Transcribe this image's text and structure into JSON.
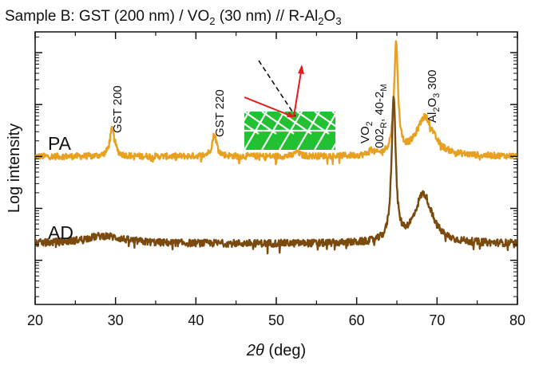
{
  "chart_data": {
    "type": "line",
    "title_parts": {
      "a": "Sample B: GST (200 nm) / VO",
      "a_sub": "2",
      "b": " (30 nm) // R-Al",
      "b_sub": "2",
      "c": "O",
      "c_sub": "3"
    },
    "xlabel_italic": "2θ",
    "xlabel_rest": " (deg)",
    "ylabel": "Log intensity",
    "xlim": [
      20,
      80
    ],
    "y_scale": "log",
    "x_ticks": [
      20,
      30,
      40,
      50,
      60,
      70,
      80
    ],
    "x_tick_labels": [
      "20",
      "30",
      "40",
      "50",
      "60",
      "70",
      "80"
    ],
    "grid": false,
    "legend": "none (inline labels)",
    "series": [
      {
        "name": "PA",
        "color": "#E8A020",
        "baseline": 1.0,
        "noise": 0.06,
        "peaks": [
          {
            "x": 29.6,
            "height": 0.55,
            "width": 0.35
          },
          {
            "x": 42.3,
            "height": 0.42,
            "width": 0.35
          },
          {
            "x": 52.6,
            "height": 0.1,
            "width": 0.3
          },
          {
            "x": 61.8,
            "height": 0.1,
            "width": 0.3
          },
          {
            "x": 64.9,
            "height": 2.1,
            "width": 0.3
          },
          {
            "x": 68.5,
            "height": 0.75,
            "width": 1.3
          }
        ]
      },
      {
        "name": "AD",
        "color": "#7A4A0E",
        "baseline": -0.68,
        "noise": 0.07,
        "peaks": [
          {
            "x": 28.5,
            "height": 0.15,
            "width": 3.0
          },
          {
            "x": 64.6,
            "height": 2.8,
            "width": 0.3
          },
          {
            "x": 68.3,
            "height": 0.95,
            "width": 1.3
          }
        ]
      }
    ],
    "annotations": [
      {
        "id": "gst200",
        "text": "GST 200",
        "x": 29.6
      },
      {
        "id": "gst220",
        "text": "GST 220",
        "x": 42.3
      },
      {
        "id": "vo2_line1",
        "text": "VO",
        "sub": "2",
        "x": 62.8
      },
      {
        "id": "vo2_line2_a",
        "text": "002",
        "sub1": "R",
        "mid": ", 40-2",
        "sub2": "M",
        "x": 64.4
      },
      {
        "id": "al2o3",
        "text_a": "Al",
        "sub_a": "2",
        "text_b": "O",
        "sub_b": "3",
        "text_c": " 300",
        "x": 68.7
      }
    ],
    "inset": {
      "description_icon": "diffraction-geometry-icon",
      "beam_color": "#E8191C",
      "crystal_color": "#22C132"
    }
  }
}
